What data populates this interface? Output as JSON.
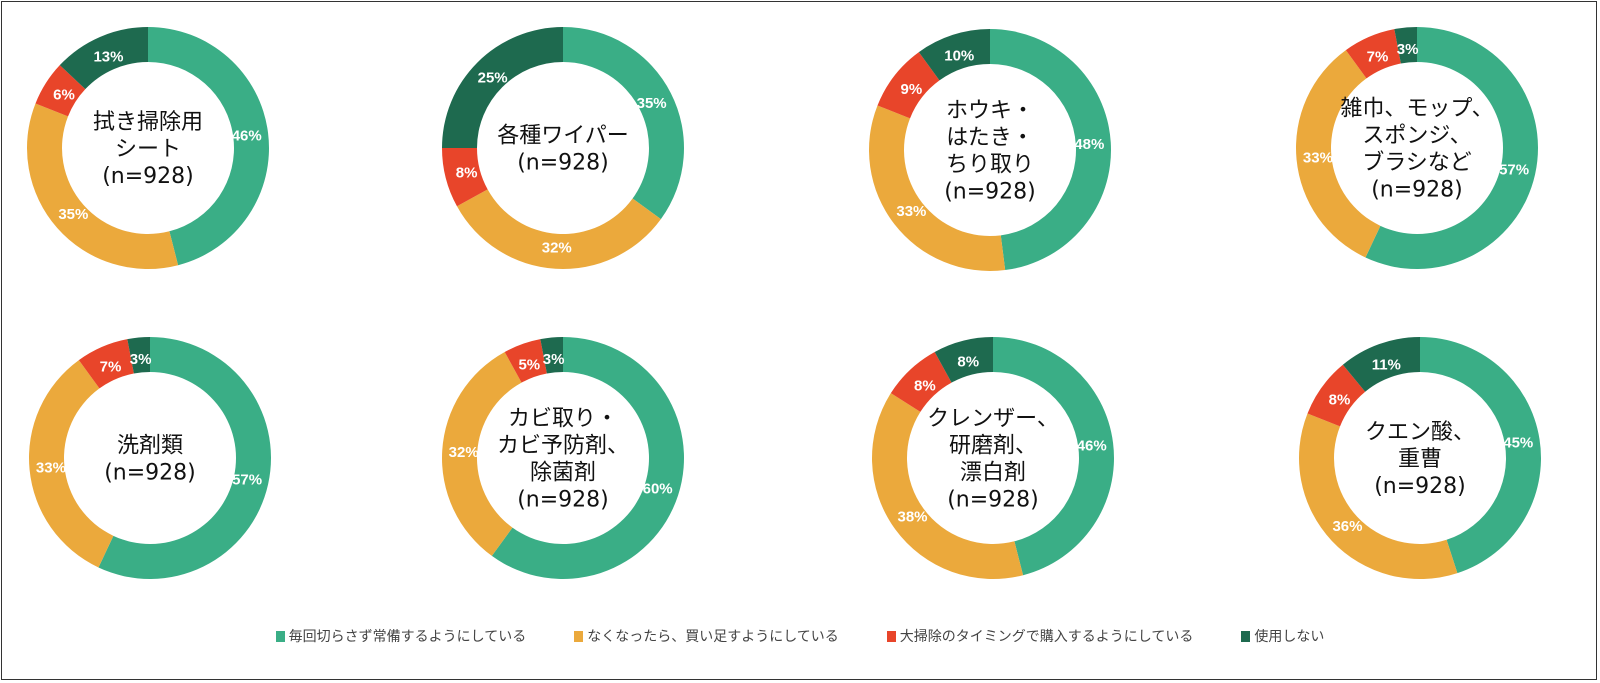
{
  "chart_data": {
    "type": "donut",
    "legend_position": "bottom",
    "colors": [
      "#3aae86",
      "#eba93c",
      "#e8452a",
      "#1e6a4f"
    ],
    "series_names": [
      "毎回切らさず常備するようにしている",
      "なくなったら、買い足すようにしている",
      "大掃除のタイミングで購入するようにしている",
      "使用しない"
    ],
    "charts": [
      {
        "title_lines": [
          "拭き掃除用",
          "シート",
          "(n=928)"
        ],
        "values": [
          46,
          35,
          6,
          13
        ]
      },
      {
        "title_lines": [
          "各種ワイパー",
          "(n=928)"
        ],
        "values": [
          35,
          32,
          8,
          25
        ]
      },
      {
        "title_lines": [
          "ホウキ・",
          "はたき・",
          "ちり取り",
          "(n=928)"
        ],
        "values": [
          48,
          33,
          9,
          10
        ]
      },
      {
        "title_lines": [
          "雑巾、モップ、",
          "スポンジ、",
          "ブラシなど",
          "(n=928)"
        ],
        "values": [
          57,
          33,
          7,
          3
        ]
      },
      {
        "title_lines": [
          "洗剤類",
          "(n=928)"
        ],
        "values": [
          57,
          33,
          7,
          3
        ]
      },
      {
        "title_lines": [
          "カビ取り・",
          "カビ予防剤、",
          "除菌剤",
          "(n=928)"
        ],
        "values": [
          60,
          32,
          5,
          3
        ]
      },
      {
        "title_lines": [
          "クレンザー、",
          "研磨剤、",
          "漂白剤",
          "(n=928)"
        ],
        "values": [
          46,
          38,
          8,
          8
        ]
      },
      {
        "title_lines": [
          "クエン酸、",
          "重曹",
          "(n=928)"
        ],
        "values": [
          45,
          36,
          8,
          11
        ]
      }
    ]
  }
}
